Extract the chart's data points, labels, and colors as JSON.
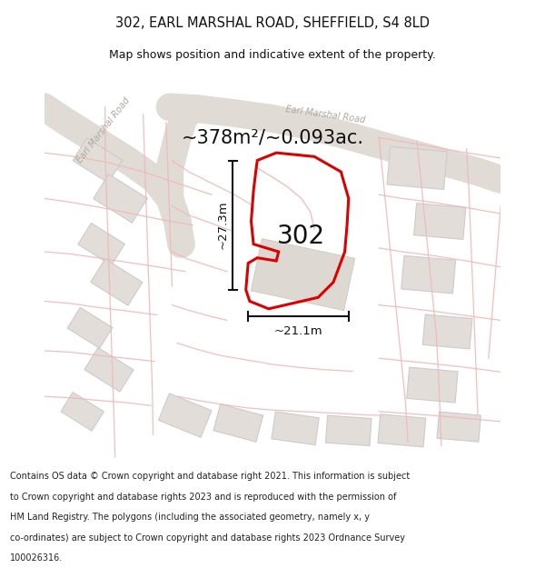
{
  "title": "302, EARL MARSHAL ROAD, SHEFFIELD, S4 8LD",
  "subtitle": "Map shows position and indicative extent of the property.",
  "area_label": "~378m²/~0.093ac.",
  "property_number": "302",
  "width_label": "~21.1m",
  "height_label": "~27.3m",
  "footer_lines": [
    "Contains OS data © Crown copyright and database right 2021. This information is subject",
    "to Crown copyright and database rights 2023 and is reproduced with the permission of",
    "HM Land Registry. The polygons (including the associated geometry, namely x, y",
    "co-ordinates) are subject to Crown copyright and database rights 2023 Ordnance Survey",
    "100026316."
  ],
  "map_bg": "#f7f4f1",
  "road_fill": "#e0dbd5",
  "road_edge": "#d0cbc4",
  "thin_road_color": "#f0b8b8",
  "plot_red": "#dd0000",
  "building_fill": "#e2ddd8",
  "building_edge": "#cccccc",
  "road_label_color": "#b0a8a0",
  "dim_color": "#111111",
  "title_color": "#111111",
  "footer_color": "#222222"
}
